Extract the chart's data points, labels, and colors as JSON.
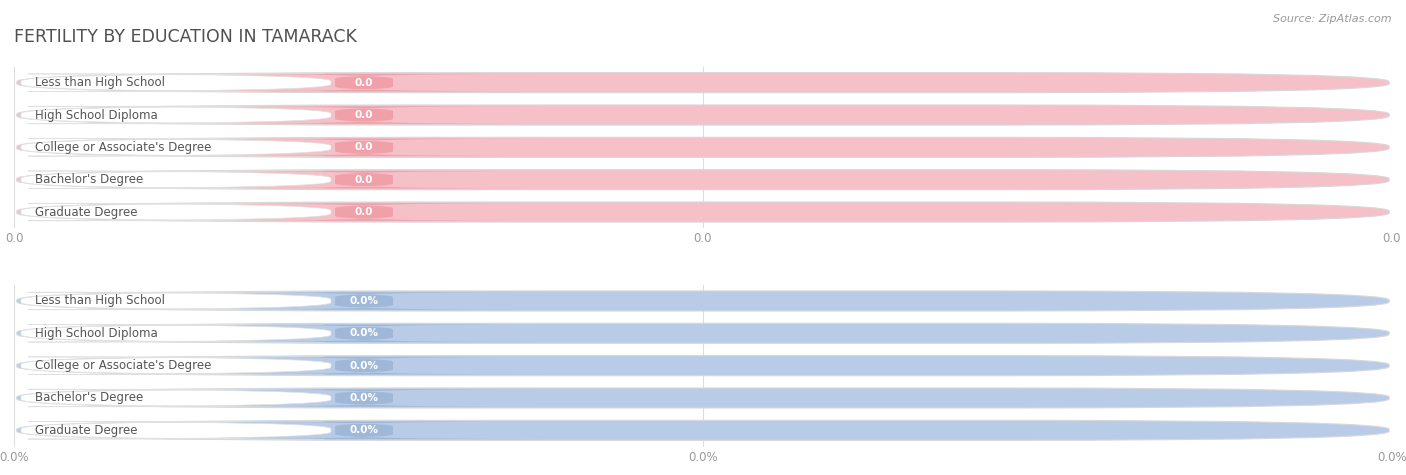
{
  "title": "FERTILITY BY EDUCATION IN TAMARACK",
  "source": "Source: ZipAtlas.com",
  "categories": [
    "Less than High School",
    "High School Diploma",
    "College or Associate's Degree",
    "Bachelor's Degree",
    "Graduate Degree"
  ],
  "values_top": [
    0.0,
    0.0,
    0.0,
    0.0,
    0.0
  ],
  "values_bottom": [
    0.0,
    0.0,
    0.0,
    0.0,
    0.0
  ],
  "bar_color_top": "#f0a0a8",
  "bar_color_bottom": "#a0b8d8",
  "bar_outer_bg_top": "#f5c0c8",
  "bar_outer_bg_bottom": "#b8cce8",
  "white_label_bg": "#ffffff",
  "row_sep_color": "#e8e8e8",
  "title_color": "#505050",
  "tick_label_color": "#999999",
  "bg_color": "#ffffff",
  "value_text_color": "#ffffff",
  "label_text_color": "#555555",
  "source_color": "#999999",
  "vline_color": "#dddddd",
  "figsize": [
    14.06,
    4.75
  ],
  "dpi": 100,
  "xtick_labels_top": [
    "0.0",
    "0.0",
    "0.0"
  ],
  "xtick_labels_bottom": [
    "0.0%",
    "0.0%",
    "0.0%"
  ],
  "xtick_positions": [
    0.0,
    0.5,
    1.0
  ]
}
